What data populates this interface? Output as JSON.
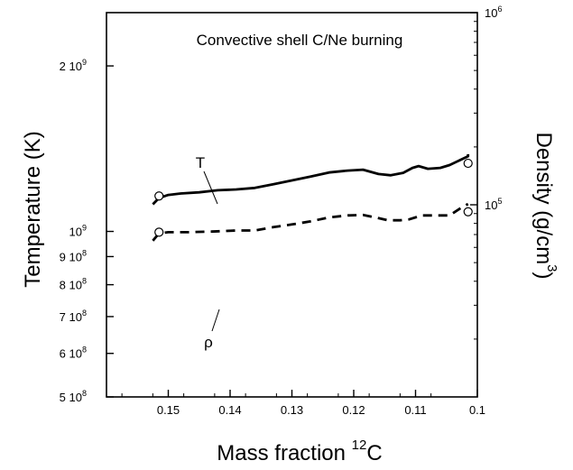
{
  "chart_data": {
    "type": "line",
    "title": "Convective shell C/Ne burning",
    "xlabel": {
      "text": "Mass fraction ",
      "sup": "12",
      "after": "C"
    },
    "ylabel_left": "Temperature  (K)",
    "ylabel_right": {
      "text": "Density  (g/cm",
      "sup": "3",
      "after": ")"
    },
    "xlim": [
      0.16,
      0.1
    ],
    "xaxis_reversed": true,
    "ylim_left": [
      500000000,
      2500000000
    ],
    "ylim_right": [
      10000,
      1000000
    ],
    "yscale_left": "log",
    "yscale_right": "log",
    "grid": false,
    "x_ticks": [
      {
        "value": 0.15,
        "label": "0.15"
      },
      {
        "value": 0.14,
        "label": "0.14"
      },
      {
        "value": 0.13,
        "label": "0.13"
      },
      {
        "value": 0.12,
        "label": "0.12"
      },
      {
        "value": 0.11,
        "label": "0.11"
      },
      {
        "value": 0.1,
        "label": "0.1"
      }
    ],
    "left_ticks": [
      {
        "value": 500000000,
        "mant": "5 10",
        "exp": "8"
      },
      {
        "value": 600000000,
        "mant": "6 10",
        "exp": "8"
      },
      {
        "value": 700000000,
        "mant": "7 10",
        "exp": "8"
      },
      {
        "value": 800000000,
        "mant": "8 10",
        "exp": "8"
      },
      {
        "value": 900000000,
        "mant": "9 10",
        "exp": "8"
      },
      {
        "value": 1000000000,
        "mant": "10",
        "exp": "9"
      },
      {
        "value": 2000000000,
        "mant": "2 10",
        "exp": "9"
      }
    ],
    "right_ticks": [
      {
        "value": 100000,
        "mant": "10",
        "exp": "5"
      },
      {
        "value": 1000000,
        "mant": "10",
        "exp": "6"
      }
    ],
    "series": [
      {
        "name": "T",
        "axis": "left",
        "style": "solid",
        "color": "#000000",
        "x": [
          0.1525,
          0.1515,
          0.15,
          0.148,
          0.145,
          0.142,
          0.139,
          0.136,
          0.133,
          0.13,
          0.127,
          0.124,
          0.121,
          0.1185,
          0.116,
          0.114,
          0.112,
          0.1105,
          0.1095,
          0.108,
          0.106,
          0.1045,
          0.103,
          0.1015,
          0.1015
        ],
        "y": [
          1120000000,
          1150000000,
          1165000000,
          1172000000,
          1178000000,
          1188000000,
          1192000000,
          1200000000,
          1218000000,
          1238000000,
          1258000000,
          1280000000,
          1290000000,
          1295000000,
          1272000000,
          1265000000,
          1278000000,
          1305000000,
          1315000000,
          1300000000,
          1305000000,
          1320000000,
          1345000000,
          1370000000,
          1382000000
        ]
      },
      {
        "name": "ρ",
        "axis": "right",
        "style": "dashed",
        "color": "#000000",
        "x": [
          0.1525,
          0.1515,
          0.15,
          0.147,
          0.143,
          0.139,
          0.136,
          0.133,
          0.13,
          0.127,
          0.124,
          0.121,
          0.1185,
          0.1165,
          0.1145,
          0.1125,
          0.111,
          0.109,
          0.107,
          0.1045,
          0.1025,
          0.1015
        ],
        "y": [
          65000,
          71000,
          72000,
          72000,
          72500,
          73500,
          73500,
          76500,
          79000,
          82000,
          86000,
          88000,
          88500,
          86000,
          83000,
          83000,
          84000,
          88000,
          88000,
          88000,
          97000,
          101000
        ]
      },
      {
        "name": "T (circles)",
        "axis": "left",
        "style": "markers",
        "color": "#000000",
        "x": [
          0.1515,
          0.1015
        ],
        "y": [
          1160000000,
          1330000000
        ]
      },
      {
        "name": "ρ (circles)",
        "axis": "right",
        "style": "markers",
        "color": "#000000",
        "x": [
          0.1515,
          0.1015
        ],
        "y": [
          72000,
          92000
        ]
      }
    ],
    "annotations": [
      {
        "text": "T",
        "series": "T"
      },
      {
        "text": "ρ",
        "series": "ρ"
      }
    ]
  }
}
